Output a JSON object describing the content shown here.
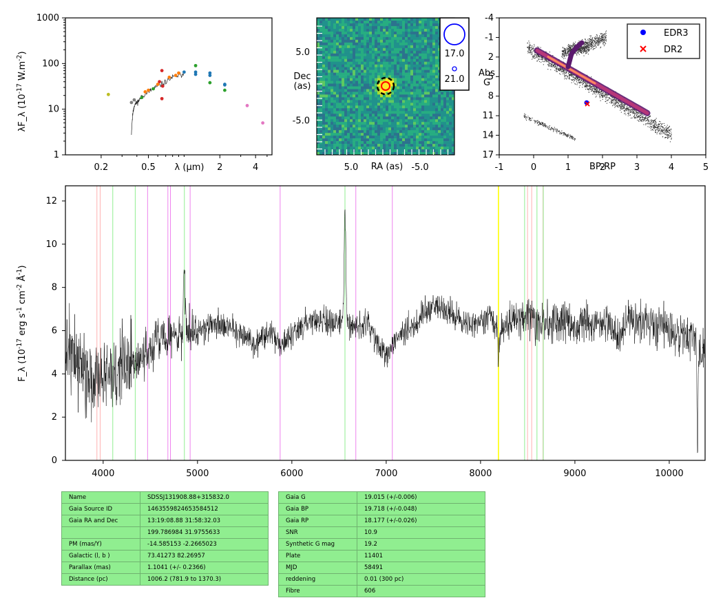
{
  "chart_data": [
    {
      "type": "scatter",
      "name": "sed",
      "ylabel": "λF_λ (10^-17 W.m^-2)",
      "xlabel": "λ (μm)",
      "xscale": "log",
      "yscale": "log",
      "xlim": [
        0.1,
        5.5
      ],
      "ylim": [
        1,
        1000
      ],
      "xticks": [
        0.2,
        0.5,
        2,
        4
      ],
      "xtick_labels": [
        "0.2",
        "0.5",
        "2",
        "4"
      ],
      "yticks": [
        1,
        10,
        100,
        1000
      ],
      "ytick_labels": [
        "1",
        "10",
        "100",
        "1000"
      ],
      "spectrum_segment": [
        [
          0.36,
          3
        ],
        [
          0.37,
          8
        ],
        [
          0.38,
          12
        ],
        [
          0.4,
          14
        ],
        [
          0.42,
          16
        ],
        [
          0.45,
          20
        ],
        [
          0.5,
          24
        ],
        [
          0.55,
          28
        ],
        [
          0.6,
          32
        ],
        [
          0.7,
          40
        ],
        [
          0.8,
          50
        ],
        [
          0.9,
          55
        ],
        [
          1.0,
          60
        ]
      ],
      "points": [
        {
          "x": 0.23,
          "y": 21,
          "color": "#bcbd22"
        },
        {
          "x": 0.36,
          "y": 14,
          "color": "#7f7f7f"
        },
        {
          "x": 0.38,
          "y": 16,
          "color": "#7f7f7f"
        },
        {
          "x": 0.44,
          "y": 18,
          "color": "#2ca02c"
        },
        {
          "x": 0.47,
          "y": 24,
          "color": "#ff7f0e"
        },
        {
          "x": 0.5,
          "y": 26,
          "color": "#ff7f0e"
        },
        {
          "x": 0.55,
          "y": 28,
          "color": "#2ca02c"
        },
        {
          "x": 0.6,
          "y": 35,
          "color": "#ff7f0e"
        },
        {
          "x": 0.62,
          "y": 40,
          "color": "#d62728"
        },
        {
          "x": 0.65,
          "y": 70,
          "color": "#d62728"
        },
        {
          "x": 0.66,
          "y": 32,
          "color": "#d62728"
        },
        {
          "x": 0.65,
          "y": 17,
          "color": "#d62728"
        },
        {
          "x": 0.75,
          "y": 50,
          "color": "#ff7f0e"
        },
        {
          "x": 0.85,
          "y": 55,
          "color": "#ff7f0e"
        },
        {
          "x": 0.9,
          "y": 62,
          "color": "#ff7f0e"
        },
        {
          "x": 1.0,
          "y": 65,
          "color": "#1f77b4"
        },
        {
          "x": 1.25,
          "y": 65,
          "color": "#1f77b4"
        },
        {
          "x": 1.25,
          "y": 90,
          "color": "#2ca02c"
        },
        {
          "x": 1.25,
          "y": 58,
          "color": "#1f77b4"
        },
        {
          "x": 1.65,
          "y": 55,
          "color": "#1f77b4"
        },
        {
          "x": 1.65,
          "y": 38,
          "color": "#2ca02c"
        },
        {
          "x": 1.65,
          "y": 62,
          "color": "#1f77b4"
        },
        {
          "x": 2.2,
          "y": 34,
          "color": "#1f77b4"
        },
        {
          "x": 2.2,
          "y": 26,
          "color": "#2ca02c"
        },
        {
          "x": 2.2,
          "y": 35,
          "color": "#1f77b4"
        },
        {
          "x": 3.4,
          "y": 12,
          "color": "#e377c2"
        },
        {
          "x": 4.6,
          "y": 5,
          "color": "#e377c2"
        }
      ]
    },
    {
      "type": "heatmap",
      "name": "image",
      "xlabel": "RA (as)",
      "ylabel": "Dec\n(as)",
      "xlim": [
        10,
        -10
      ],
      "ylim": [
        -10,
        10
      ],
      "xticks": [
        5.0,
        -5.0
      ],
      "xtick_labels": [
        "5.0",
        "-5.0"
      ],
      "yticks": [
        5.0,
        -5.0
      ],
      "ytick_labels": [
        "5.0",
        "-5.0"
      ],
      "legend": [
        "17.0",
        "21.0"
      ]
    },
    {
      "type": "scatter",
      "name": "hr",
      "xlabel": "BP-RP",
      "ylabel": "Abs\nG",
      "xlim": [
        -1,
        5
      ],
      "ylim": [
        17,
        -4
      ],
      "xticks": [
        -1,
        0,
        1,
        2,
        3,
        4,
        5
      ],
      "xtick_labels": [
        "-1",
        "0",
        "1",
        "2",
        "3",
        "4",
        "5"
      ],
      "yticks": [
        -4,
        -1,
        2,
        5,
        8,
        11,
        14,
        17
      ],
      "ytick_labels": [
        "-4",
        "-1",
        "2",
        "5",
        "8",
        "11",
        "14",
        "17"
      ],
      "legend_position": "top-right",
      "series": [
        {
          "name": "EDR3",
          "x": [
            1.54
          ],
          "y": [
            9.0
          ],
          "color": "#0000ff",
          "marker": "circle"
        },
        {
          "name": "DR2",
          "x": [
            1.56
          ],
          "y": [
            9.2
          ],
          "color": "#ff0000",
          "marker": "x"
        }
      ]
    },
    {
      "type": "line",
      "name": "spectrum",
      "ylabel": "F_λ (10^-17 erg s^-1 cm^-2 Å^-1)",
      "xlim": [
        3600,
        10380
      ],
      "ylim": [
        0,
        12.7
      ],
      "xticks": [
        4000,
        5000,
        6000,
        7000,
        8000,
        9000,
        10000
      ],
      "xtick_labels": [
        "4000",
        "5000",
        "6000",
        "7000",
        "8000",
        "9000",
        "10000"
      ],
      "yticks": [
        0,
        2,
        4,
        6,
        8,
        10,
        12
      ],
      "ytick_labels": [
        "0",
        "2",
        "4",
        "6",
        "8",
        "10",
        "12"
      ],
      "continuum": [
        [
          3600,
          5.0
        ],
        [
          3700,
          4.8
        ],
        [
          3800,
          4.3
        ],
        [
          3900,
          4.0
        ],
        [
          4000,
          3.8
        ],
        [
          4100,
          4.2
        ],
        [
          4200,
          4.4
        ],
        [
          4300,
          4.5
        ],
        [
          4400,
          4.8
        ],
        [
          4500,
          5.2
        ],
        [
          4600,
          5.5
        ],
        [
          4700,
          5.7
        ],
        [
          4800,
          5.8
        ],
        [
          4900,
          5.9
        ],
        [
          5000,
          6.0
        ],
        [
          5100,
          6.2
        ],
        [
          5200,
          6.4
        ],
        [
          5300,
          6.2
        ],
        [
          5400,
          6.0
        ],
        [
          5500,
          5.8
        ],
        [
          5600,
          5.3
        ],
        [
          5700,
          5.8
        ],
        [
          5800,
          5.9
        ],
        [
          5900,
          5.2
        ],
        [
          6000,
          5.9
        ],
        [
          6100,
          6.2
        ],
        [
          6200,
          6.4
        ],
        [
          6300,
          6.5
        ],
        [
          6400,
          6.4
        ],
        [
          6500,
          6.4
        ],
        [
          6600,
          6.4
        ],
        [
          6700,
          6.0
        ],
        [
          6800,
          6.4
        ],
        [
          6900,
          5.4
        ],
        [
          7000,
          4.8
        ],
        [
          7100,
          5.6
        ],
        [
          7200,
          6.0
        ],
        [
          7300,
          6.2
        ],
        [
          7400,
          6.8
        ],
        [
          7500,
          7.3
        ],
        [
          7600,
          7.0
        ],
        [
          7700,
          6.8
        ],
        [
          7800,
          6.4
        ],
        [
          7900,
          6.3
        ],
        [
          8000,
          6.5
        ],
        [
          8100,
          6.6
        ],
        [
          8200,
          6.0
        ],
        [
          8300,
          6.4
        ],
        [
          8400,
          6.6
        ],
        [
          8500,
          6.5
        ],
        [
          8600,
          6.4
        ],
        [
          8700,
          6.3
        ],
        [
          8800,
          6.4
        ],
        [
          8900,
          6.4
        ],
        [
          9000,
          6.3
        ],
        [
          9100,
          6.5
        ],
        [
          9200,
          6.4
        ],
        [
          9300,
          6.3
        ],
        [
          9400,
          6.2
        ],
        [
          9500,
          6.0
        ],
        [
          9600,
          6.3
        ],
        [
          9700,
          6.4
        ],
        [
          9800,
          6.3
        ],
        [
          9900,
          6.3
        ],
        [
          10000,
          6.0
        ],
        [
          10100,
          5.8
        ],
        [
          10200,
          5.9
        ],
        [
          10380,
          5.0
        ]
      ],
      "emission": [
        [
          4860,
          9.0
        ],
        [
          6563,
          11.8
        ]
      ],
      "absorption": [
        [
          8190,
          4.4
        ],
        [
          10300,
          0.4
        ]
      ],
      "vlines": [
        {
          "x": 3934,
          "color": "#ffb0b0"
        },
        {
          "x": 3968,
          "color": "#ffb0b0"
        },
        {
          "x": 4102,
          "color": "#90ee90"
        },
        {
          "x": 4340,
          "color": "#90ee90"
        },
        {
          "x": 4471,
          "color": "#ee82ee"
        },
        {
          "x": 4686,
          "color": "#ee82ee"
        },
        {
          "x": 4713,
          "color": "#ee82ee"
        },
        {
          "x": 4861,
          "color": "#90ee90"
        },
        {
          "x": 4922,
          "color": "#ee82ee"
        },
        {
          "x": 5876,
          "color": "#ee82ee"
        },
        {
          "x": 6563,
          "color": "#90ee90"
        },
        {
          "x": 6678,
          "color": "#ee82ee"
        },
        {
          "x": 7065,
          "color": "#ee82ee"
        },
        {
          "x": 8190,
          "color": "#ffff00"
        },
        {
          "x": 8467,
          "color": "#90ee90"
        },
        {
          "x": 8498,
          "color": "#ffb0b0"
        },
        {
          "x": 8542,
          "color": "#ffb0b0"
        },
        {
          "x": 8598,
          "color": "#90ee90"
        },
        {
          "x": 8662,
          "color": "#ffb0b0"
        },
        {
          "x": 8665,
          "color": "#90ee90"
        }
      ]
    }
  ],
  "info_left": [
    [
      "Name",
      "SDSSJ131908.88+315832.0"
    ],
    [
      "Gaia Source ID",
      "1463559824653584512"
    ],
    [
      "Gaia RA and Dec",
      "13:19:08.88    31:58:32.03"
    ],
    [
      "",
      "199.786984    31.9755633"
    ],
    [
      "PM (mas/Y)",
      "-14.585153    -2.2665023"
    ],
    [
      "Galactic (l, b )",
      "73.41273    82.26957"
    ],
    [
      "Parallax (mas)",
      "1.1041 (+/- 0.2366)"
    ],
    [
      "Distance (pc)",
      "1006.2 (781.9 to 1370.3)"
    ]
  ],
  "info_right": [
    [
      "Gaia G",
      "19.015 (+/-0.006)"
    ],
    [
      "Gaia BP",
      "19.718 (+/-0.048)"
    ],
    [
      "Gaia RP",
      "18.177 (+/-0.026)"
    ],
    [
      "SNR",
      "10.9"
    ],
    [
      "Synthetic G mag",
      "19.2"
    ],
    [
      "Plate",
      "11401"
    ],
    [
      "MJD",
      "58491"
    ],
    [
      "reddening",
      "0.01 (300 pc)"
    ],
    [
      "Fibre",
      "606"
    ]
  ]
}
